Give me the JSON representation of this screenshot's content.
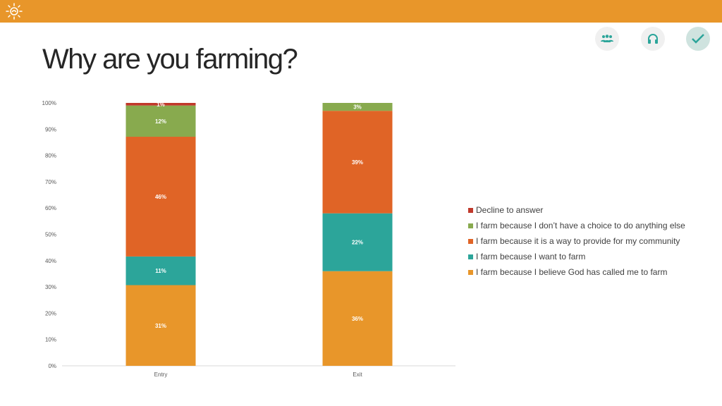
{
  "header": {
    "title": "Why are you farming?",
    "icons": [
      "sun-logo-icon",
      "people-icon",
      "headphones-icon",
      "checkmark-icon"
    ]
  },
  "chart_data": {
    "type": "bar",
    "stacked": true,
    "percent": true,
    "categories": [
      "Entry",
      "Exit"
    ],
    "ylim": [
      0,
      100
    ],
    "yticks": [
      "0%",
      "10%",
      "20%",
      "30%",
      "40%",
      "50%",
      "60%",
      "70%",
      "80%",
      "90%",
      "100%"
    ],
    "legend_position": "right",
    "series": [
      {
        "name": "I farm because I believe God has called me to farm",
        "color": "#E8962A",
        "values": [
          31,
          36
        ]
      },
      {
        "name": "I farm because I want to farm",
        "color": "#2CA59A",
        "values": [
          11,
          22
        ]
      },
      {
        "name": "I farm because it is a way to provide for my community",
        "color": "#E06426",
        "values": [
          46,
          39
        ]
      },
      {
        "name": "I farm because I don’t have a choice to do anything else",
        "color": "#88AA4E",
        "values": [
          12,
          3
        ]
      },
      {
        "name": "Decline to answer",
        "color": "#C0392B",
        "values": [
          1,
          0
        ]
      }
    ]
  }
}
